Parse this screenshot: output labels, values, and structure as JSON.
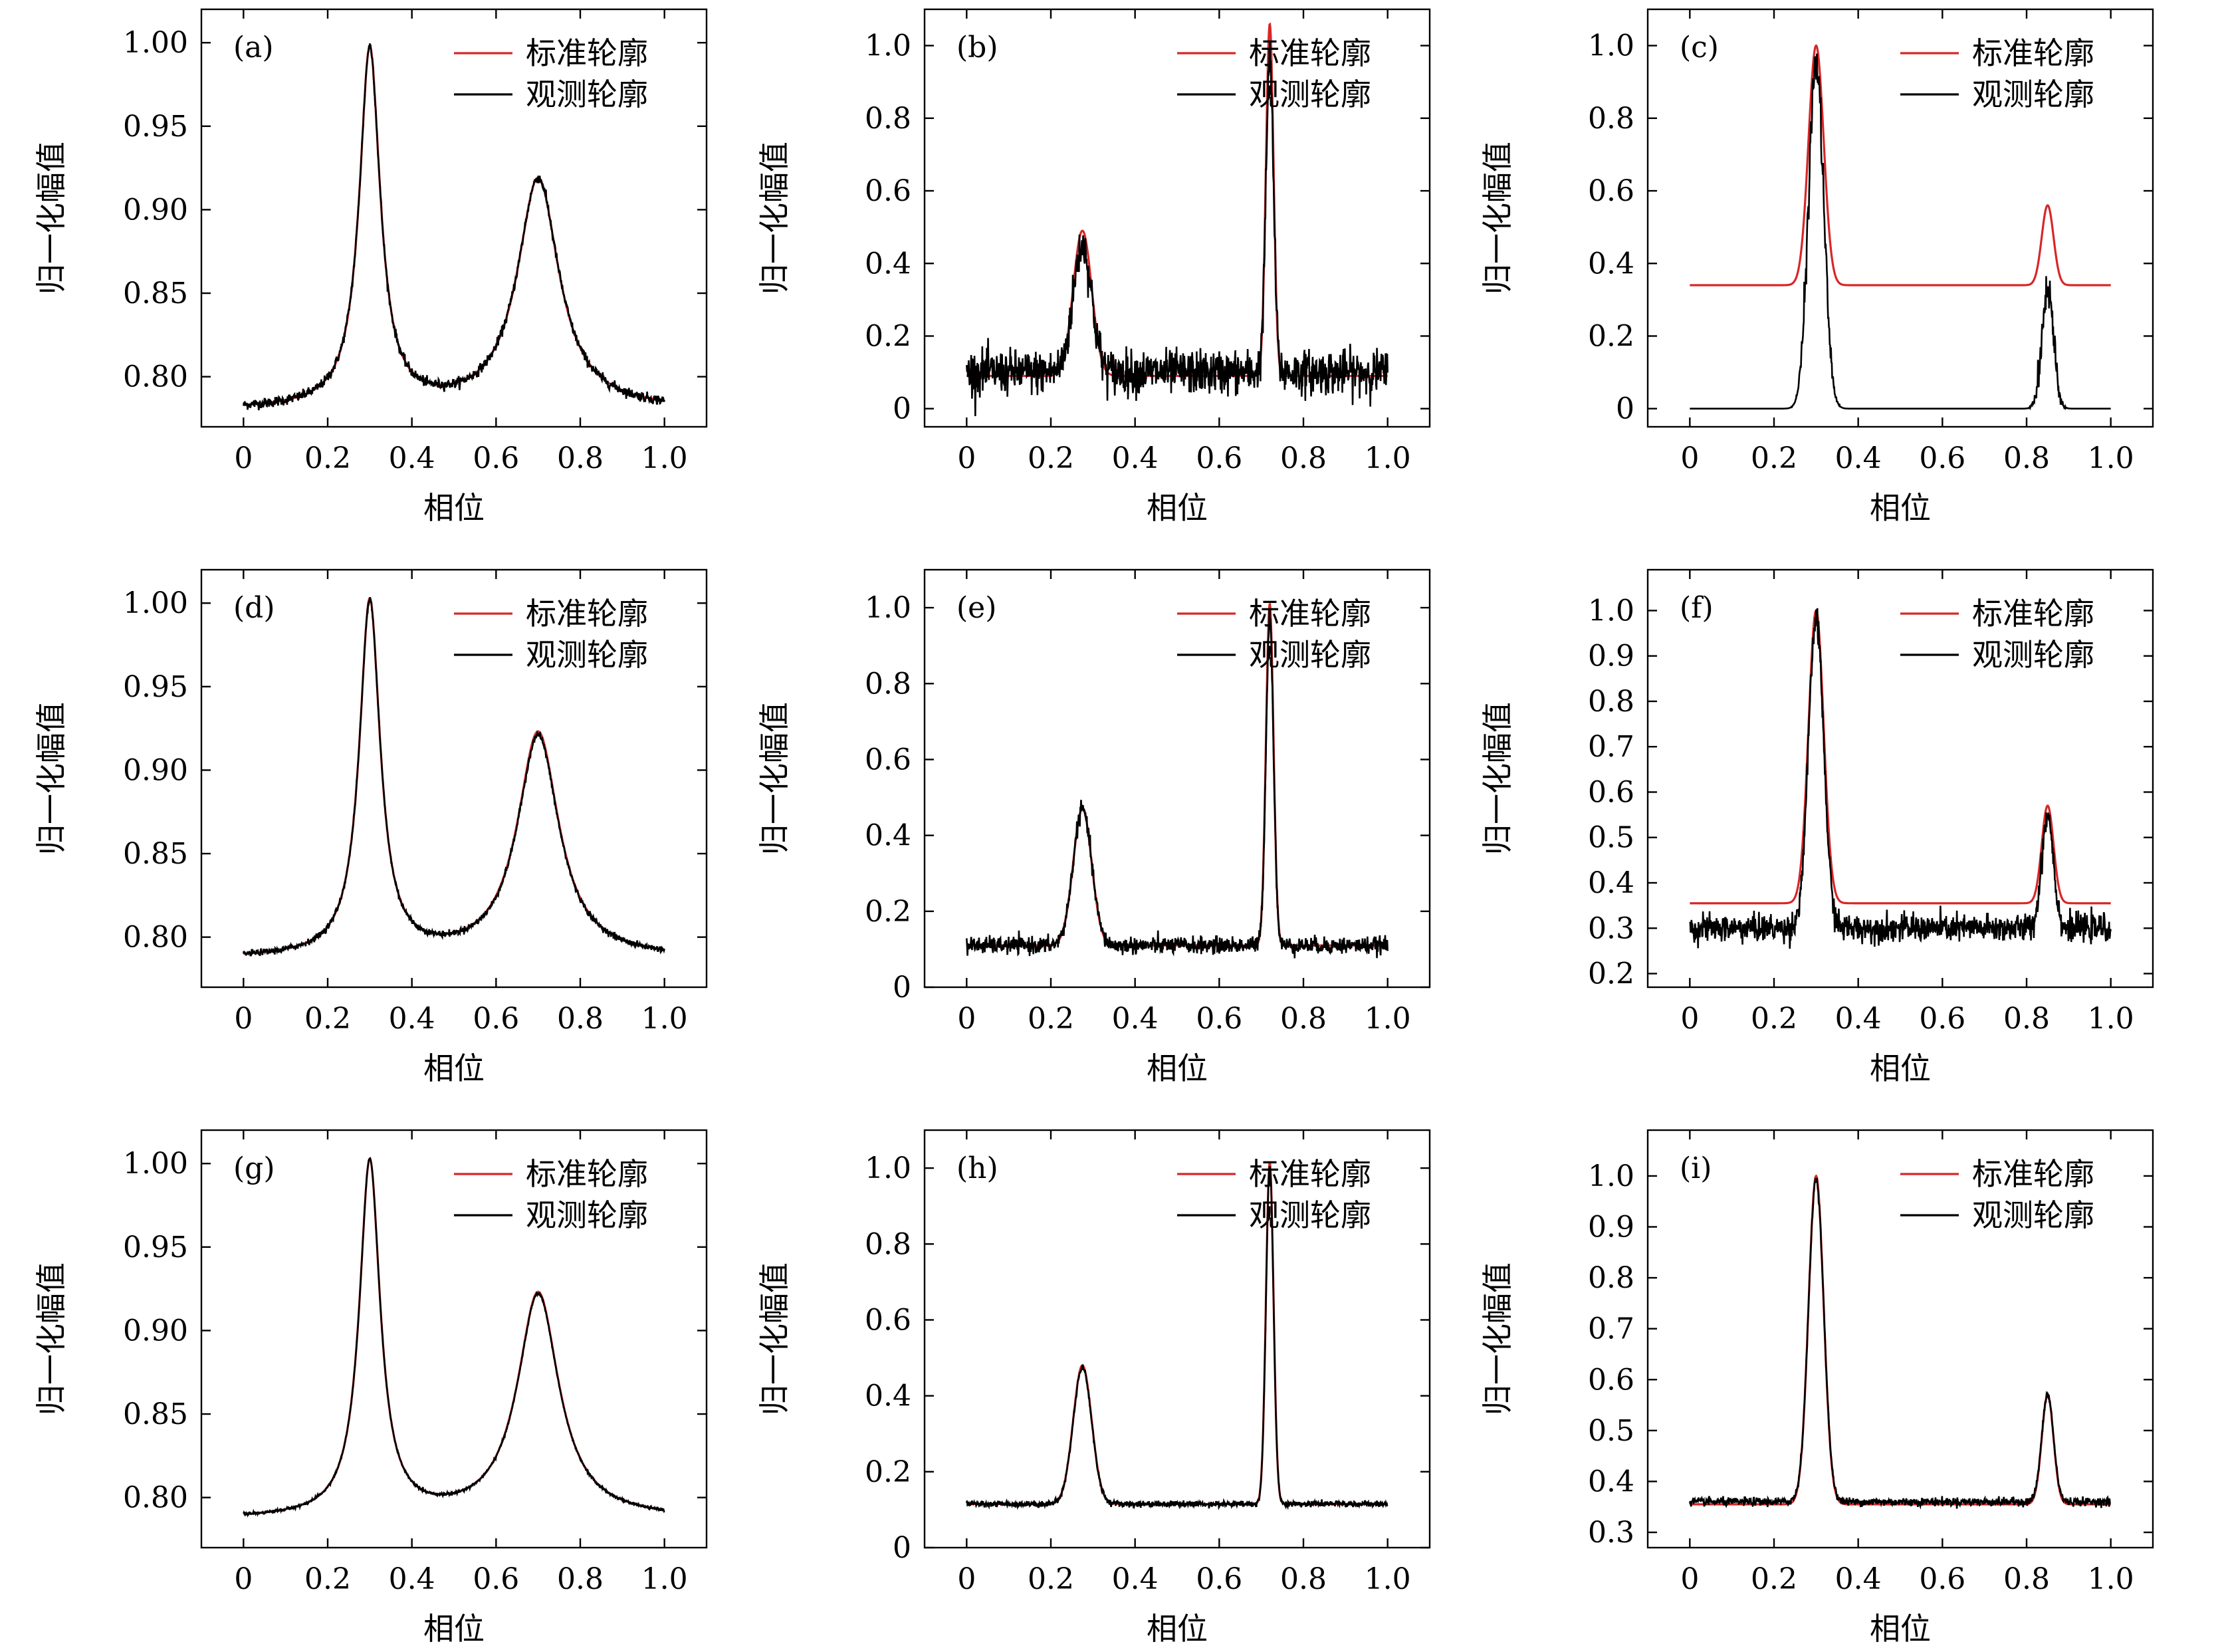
{
  "figure": {
    "xlabel": "相位",
    "ylabel": "归一化幅值",
    "legend": [
      "标准轮廓",
      "观测轮廓"
    ],
    "colors": {
      "standard": "#d62728",
      "observed": "#000000"
    }
  },
  "chart_data": [
    {
      "id": "a",
      "type": "line",
      "panel_label": "(a)",
      "legend_placement": "top-right",
      "xlim": [
        -0.1,
        1.1
      ],
      "ylim": [
        0.77,
        1.02
      ],
      "xticks": [
        0,
        0.2,
        0.4,
        0.6,
        0.8,
        1.0
      ],
      "xtick_labels": [
        "0",
        "0.2",
        "0.4",
        "0.6",
        "0.8",
        "1.0"
      ],
      "yticks": [
        0.8,
        0.85,
        0.9,
        0.95,
        1.0
      ],
      "ytick_labels": [
        "0.80",
        "0.85",
        "0.90",
        "0.95",
        "1.00"
      ],
      "series": [
        {
          "name": "标准轮廓",
          "color": "#d62728",
          "base": 0.78,
          "peaks": [
            {
              "center": 0.3,
              "amp": 0.215,
              "width": 0.03,
              "shape": "lorentz"
            },
            {
              "center": 0.7,
              "amp": 0.138,
              "width": 0.06,
              "shape": "lorentz"
            }
          ]
        },
        {
          "name": "观测轮廓",
          "color": "#000000",
          "base": 0.78,
          "noise": 0.0015,
          "peaks": [
            {
              "center": 0.3,
              "amp": 0.215,
              "width": 0.03,
              "shape": "lorentz"
            },
            {
              "center": 0.7,
              "amp": 0.138,
              "width": 0.06,
              "shape": "lorentz"
            }
          ]
        }
      ]
    },
    {
      "id": "b",
      "type": "line",
      "panel_label": "(b)",
      "legend_placement": "top-right",
      "xlim": [
        -0.1,
        1.1
      ],
      "ylim": [
        -0.05,
        1.1
      ],
      "xticks": [
        0,
        0.2,
        0.4,
        0.6,
        0.8,
        1.0
      ],
      "xtick_labels": [
        "0",
        "0.2",
        "0.4",
        "0.6",
        "0.8",
        "1.0"
      ],
      "yticks": [
        0,
        0.2,
        0.4,
        0.6,
        0.8,
        1.0
      ],
      "ytick_labels": [
        "0",
        "0.2",
        "0.4",
        "0.6",
        "0.8",
        "1.0"
      ],
      "series": [
        {
          "name": "标准轮廓",
          "color": "#d62728",
          "base": 0.09,
          "peaks": [
            {
              "center": 0.275,
              "amp": 0.4,
              "width": 0.022,
              "shape": "gauss"
            },
            {
              "center": 0.72,
              "amp": 0.97,
              "width": 0.009,
              "shape": "gauss"
            }
          ]
        },
        {
          "name": "观测轮廓",
          "color": "#000000",
          "base": 0.1,
          "noise": 0.03,
          "peaks": [
            {
              "center": 0.275,
              "amp": 0.35,
              "width": 0.022,
              "shape": "gauss"
            },
            {
              "center": 0.72,
              "amp": 0.86,
              "width": 0.009,
              "shape": "gauss"
            }
          ]
        }
      ]
    },
    {
      "id": "c",
      "type": "line",
      "panel_label": "(c)",
      "legend_placement": "top-right",
      "xlim": [
        -0.1,
        1.1
      ],
      "ylim": [
        -0.05,
        1.1
      ],
      "xticks": [
        0,
        0.2,
        0.4,
        0.6,
        0.8,
        1.0
      ],
      "xtick_labels": [
        "0",
        "0.2",
        "0.4",
        "0.6",
        "0.8",
        "1.0"
      ],
      "yticks": [
        0,
        0.2,
        0.4,
        0.6,
        0.8,
        1.0
      ],
      "ytick_labels": [
        "0",
        "0.2",
        "0.4",
        "0.6",
        "0.8",
        "1.0"
      ],
      "series": [
        {
          "name": "标准轮廓",
          "color": "#d62728",
          "base": 0.34,
          "peaks": [
            {
              "center": 0.3,
              "amp": 0.66,
              "width": 0.018,
              "shape": "gauss"
            },
            {
              "center": 0.85,
              "amp": 0.22,
              "width": 0.014,
              "shape": "gauss"
            }
          ]
        },
        {
          "name": "观测轮廓",
          "color": "#000000",
          "base": 0.0,
          "noise": 0.03,
          "noise_in_peaks_only": true,
          "peaks": [
            {
              "center": 0.3,
              "amp": 0.95,
              "width": 0.018,
              "shape": "gauss"
            },
            {
              "center": 0.85,
              "amp": 0.33,
              "width": 0.014,
              "shape": "gauss"
            }
          ]
        }
      ]
    },
    {
      "id": "d",
      "type": "line",
      "panel_label": "(d)",
      "legend_placement": "top-right",
      "xlim": [
        -0.1,
        1.1
      ],
      "ylim": [
        0.77,
        1.02
      ],
      "xticks": [
        0,
        0.2,
        0.4,
        0.6,
        0.8,
        1.0
      ],
      "xtick_labels": [
        "0",
        "0.2",
        "0.4",
        "0.6",
        "0.8",
        "1.0"
      ],
      "yticks": [
        0.8,
        0.85,
        0.9,
        0.95,
        1.0
      ],
      "ytick_labels": [
        "0.80",
        "0.85",
        "0.90",
        "0.95",
        "1.00"
      ],
      "series": [
        {
          "name": "标准轮廓",
          "color": "#d62728",
          "base": 0.787,
          "peaks": [
            {
              "center": 0.3,
              "amp": 0.213,
              "width": 0.03,
              "shape": "lorentz"
            },
            {
              "center": 0.7,
              "amp": 0.135,
              "width": 0.06,
              "shape": "lorentz"
            }
          ]
        },
        {
          "name": "观测轮廓",
          "color": "#000000",
          "base": 0.787,
          "noise": 0.0009,
          "peaks": [
            {
              "center": 0.3,
              "amp": 0.213,
              "width": 0.03,
              "shape": "lorentz"
            },
            {
              "center": 0.7,
              "amp": 0.133,
              "width": 0.06,
              "shape": "lorentz"
            }
          ]
        }
      ]
    },
    {
      "id": "e",
      "type": "line",
      "panel_label": "(e)",
      "legend_placement": "top-right",
      "xlim": [
        -0.1,
        1.1
      ],
      "ylim": [
        0,
        1.1
      ],
      "xticks": [
        0,
        0.2,
        0.4,
        0.6,
        0.8,
        1.0
      ],
      "xtick_labels": [
        "0",
        "0.2",
        "0.4",
        "0.6",
        "0.8",
        "1.0"
      ],
      "yticks": [
        0,
        0.2,
        0.4,
        0.6,
        0.8,
        1.0
      ],
      "ytick_labels": [
        "0",
        "0.2",
        "0.4",
        "0.6",
        "0.8",
        "1.0"
      ],
      "series": [
        {
          "name": "标准轮廓",
          "color": "#d62728",
          "base": 0.11,
          "peaks": [
            {
              "center": 0.275,
              "amp": 0.36,
              "width": 0.022,
              "shape": "gauss"
            },
            {
              "center": 0.72,
              "amp": 0.9,
              "width": 0.009,
              "shape": "gauss"
            }
          ]
        },
        {
          "name": "观测轮廓",
          "color": "#000000",
          "base": 0.11,
          "noise": 0.011,
          "peaks": [
            {
              "center": 0.275,
              "amp": 0.36,
              "width": 0.022,
              "shape": "gauss"
            },
            {
              "center": 0.72,
              "amp": 0.86,
              "width": 0.009,
              "shape": "gauss"
            }
          ]
        }
      ]
    },
    {
      "id": "f",
      "type": "line",
      "panel_label": "(f)",
      "legend_placement": "top-right",
      "xlim": [
        -0.1,
        1.1
      ],
      "ylim": [
        0.17,
        1.09
      ],
      "xticks": [
        0,
        0.2,
        0.4,
        0.6,
        0.8,
        1.0
      ],
      "xtick_labels": [
        "0",
        "0.2",
        "0.4",
        "0.6",
        "0.8",
        "1.0"
      ],
      "yticks": [
        0.2,
        0.3,
        0.4,
        0.5,
        0.6,
        0.7,
        0.8,
        0.9,
        1.0
      ],
      "ytick_labels": [
        "0.2",
        "0.3",
        "0.4",
        "0.5",
        "0.6",
        "0.7",
        "0.8",
        "0.9",
        "1.0"
      ],
      "series": [
        {
          "name": "标准轮廓",
          "color": "#d62728",
          "base": 0.355,
          "peaks": [
            {
              "center": 0.3,
              "amp": 0.645,
              "width": 0.018,
              "shape": "gauss"
            },
            {
              "center": 0.85,
              "amp": 0.215,
              "width": 0.014,
              "shape": "gauss"
            }
          ]
        },
        {
          "name": "观测轮廓",
          "color": "#000000",
          "base": 0.3,
          "noise": 0.015,
          "peaks": [
            {
              "center": 0.3,
              "amp": 0.68,
              "width": 0.018,
              "shape": "gauss"
            },
            {
              "center": 0.85,
              "amp": 0.25,
              "width": 0.014,
              "shape": "gauss"
            }
          ]
        }
      ]
    },
    {
      "id": "g",
      "type": "line",
      "panel_label": "(g)",
      "legend_placement": "top-right",
      "xlim": [
        -0.1,
        1.1
      ],
      "ylim": [
        0.77,
        1.02
      ],
      "xticks": [
        0,
        0.2,
        0.4,
        0.6,
        0.8,
        1.0
      ],
      "xtick_labels": [
        "0",
        "0.2",
        "0.4",
        "0.6",
        "0.8",
        "1.0"
      ],
      "yticks": [
        0.8,
        0.85,
        0.9,
        0.95,
        1.0
      ],
      "ytick_labels": [
        "0.80",
        "0.85",
        "0.90",
        "0.95",
        "1.00"
      ],
      "series": [
        {
          "name": "标准轮廓",
          "color": "#d62728",
          "base": 0.787,
          "peaks": [
            {
              "center": 0.3,
              "amp": 0.213,
              "width": 0.03,
              "shape": "lorentz"
            },
            {
              "center": 0.7,
              "amp": 0.135,
              "width": 0.06,
              "shape": "lorentz"
            }
          ]
        },
        {
          "name": "观测轮廓",
          "color": "#000000",
          "base": 0.787,
          "noise": 0.0004,
          "peaks": [
            {
              "center": 0.3,
              "amp": 0.213,
              "width": 0.03,
              "shape": "lorentz"
            },
            {
              "center": 0.7,
              "amp": 0.134,
              "width": 0.06,
              "shape": "lorentz"
            }
          ]
        }
      ]
    },
    {
      "id": "h",
      "type": "line",
      "panel_label": "(h)",
      "legend_placement": "top-right",
      "xlim": [
        -0.1,
        1.1
      ],
      "ylim": [
        0,
        1.1
      ],
      "xticks": [
        0,
        0.2,
        0.4,
        0.6,
        0.8,
        1.0
      ],
      "xtick_labels": [
        "0",
        "0.2",
        "0.4",
        "0.6",
        "0.8",
        "1.0"
      ],
      "yticks": [
        0,
        0.2,
        0.4,
        0.6,
        0.8,
        1.0
      ],
      "ytick_labels": [
        "0",
        "0.2",
        "0.4",
        "0.6",
        "0.8",
        "1.0"
      ],
      "series": [
        {
          "name": "标准轮廓",
          "color": "#d62728",
          "base": 0.115,
          "peaks": [
            {
              "center": 0.275,
              "amp": 0.365,
              "width": 0.022,
              "shape": "gauss"
            },
            {
              "center": 0.72,
              "amp": 0.9,
              "width": 0.009,
              "shape": "gauss"
            }
          ]
        },
        {
          "name": "观测轮廓",
          "color": "#000000",
          "base": 0.115,
          "noise": 0.004,
          "peaks": [
            {
              "center": 0.275,
              "amp": 0.36,
              "width": 0.022,
              "shape": "gauss"
            },
            {
              "center": 0.72,
              "amp": 0.89,
              "width": 0.009,
              "shape": "gauss"
            }
          ]
        }
      ]
    },
    {
      "id": "i",
      "type": "line",
      "panel_label": "(i)",
      "legend_placement": "top-right",
      "xlim": [
        -0.1,
        1.1
      ],
      "ylim": [
        0.27,
        1.09
      ],
      "xticks": [
        0,
        0.2,
        0.4,
        0.6,
        0.8,
        1.0
      ],
      "xtick_labels": [
        "0",
        "0.2",
        "0.4",
        "0.6",
        "0.8",
        "1.0"
      ],
      "yticks": [
        0.3,
        0.4,
        0.5,
        0.6,
        0.7,
        0.8,
        0.9,
        1.0
      ],
      "ytick_labels": [
        "0.3",
        "0.4",
        "0.5",
        "0.6",
        "0.7",
        "0.8",
        "0.9",
        "1.0"
      ],
      "series": [
        {
          "name": "标准轮廓",
          "color": "#d62728",
          "base": 0.355,
          "peaks": [
            {
              "center": 0.3,
              "amp": 0.645,
              "width": 0.018,
              "shape": "gauss"
            },
            {
              "center": 0.85,
              "amp": 0.215,
              "width": 0.014,
              "shape": "gauss"
            }
          ]
        },
        {
          "name": "观测轮廓",
          "color": "#000000",
          "base": 0.36,
          "noise": 0.004,
          "peaks": [
            {
              "center": 0.3,
              "amp": 0.635,
              "width": 0.018,
              "shape": "gauss"
            },
            {
              "center": 0.85,
              "amp": 0.21,
              "width": 0.014,
              "shape": "gauss"
            }
          ]
        }
      ]
    }
  ]
}
